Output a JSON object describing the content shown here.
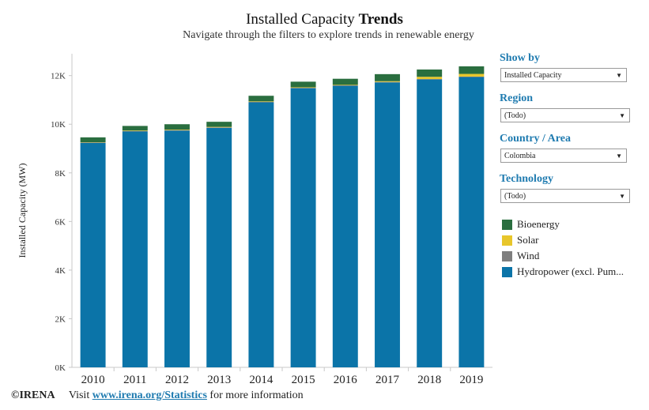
{
  "header": {
    "title_regular": "Installed Capacity",
    "title_bold": "Trends",
    "subtitle": "Navigate through the filters to explore trends in renewable energy"
  },
  "filters": [
    {
      "label": "Show by",
      "value": "Installed Capacity"
    },
    {
      "label": "Region",
      "value": "(Todo)"
    },
    {
      "label": "Country / Area",
      "value": "Colombia"
    },
    {
      "label": "Technology",
      "value": "(Todo)"
    }
  ],
  "legend": [
    {
      "label": "Bioenergy",
      "color": "#2a6e3f"
    },
    {
      "label": "Solar",
      "color": "#e8c62b"
    },
    {
      "label": "Wind",
      "color": "#7f7f7f"
    },
    {
      "label": "Hydropower (excl. Pum...",
      "color": "#0b74a8"
    }
  ],
  "footer": {
    "brand": "©IRENA",
    "text_before": "Visit",
    "link": "www.irena.org/Statistics",
    "text_after": "for more information"
  },
  "chart_data": {
    "type": "bar",
    "stacked": true,
    "ylabel": "Installed Capacity (MW)",
    "ylim": [
      0,
      12900
    ],
    "yticks": [
      0,
      2000,
      4000,
      6000,
      8000,
      10000,
      12000
    ],
    "ytick_labels": [
      "0K",
      "2K",
      "4K",
      "6K",
      "8K",
      "10K",
      "12K"
    ],
    "grid": false,
    "categories": [
      "2010",
      "2011",
      "2012",
      "2013",
      "2014",
      "2015",
      "2016",
      "2017",
      "2018",
      "2019"
    ],
    "series": [
      {
        "name": "Hydropower (excl. Pum...",
        "color": "#0b74a8",
        "values": [
          9230,
          9700,
          9740,
          9850,
          10900,
          11480,
          11580,
          11720,
          11840,
          11940
        ]
      },
      {
        "name": "Wind",
        "color": "#7f7f7f",
        "values": [
          20,
          20,
          20,
          20,
          20,
          20,
          20,
          20,
          20,
          20
        ]
      },
      {
        "name": "Solar",
        "color": "#e8c62b",
        "values": [
          10,
          20,
          20,
          20,
          20,
          20,
          20,
          30,
          90,
          110
        ]
      },
      {
        "name": "Bioenergy",
        "color": "#2a6e3f",
        "values": [
          200,
          190,
          220,
          210,
          230,
          230,
          250,
          290,
          300,
          310
        ]
      }
    ]
  }
}
